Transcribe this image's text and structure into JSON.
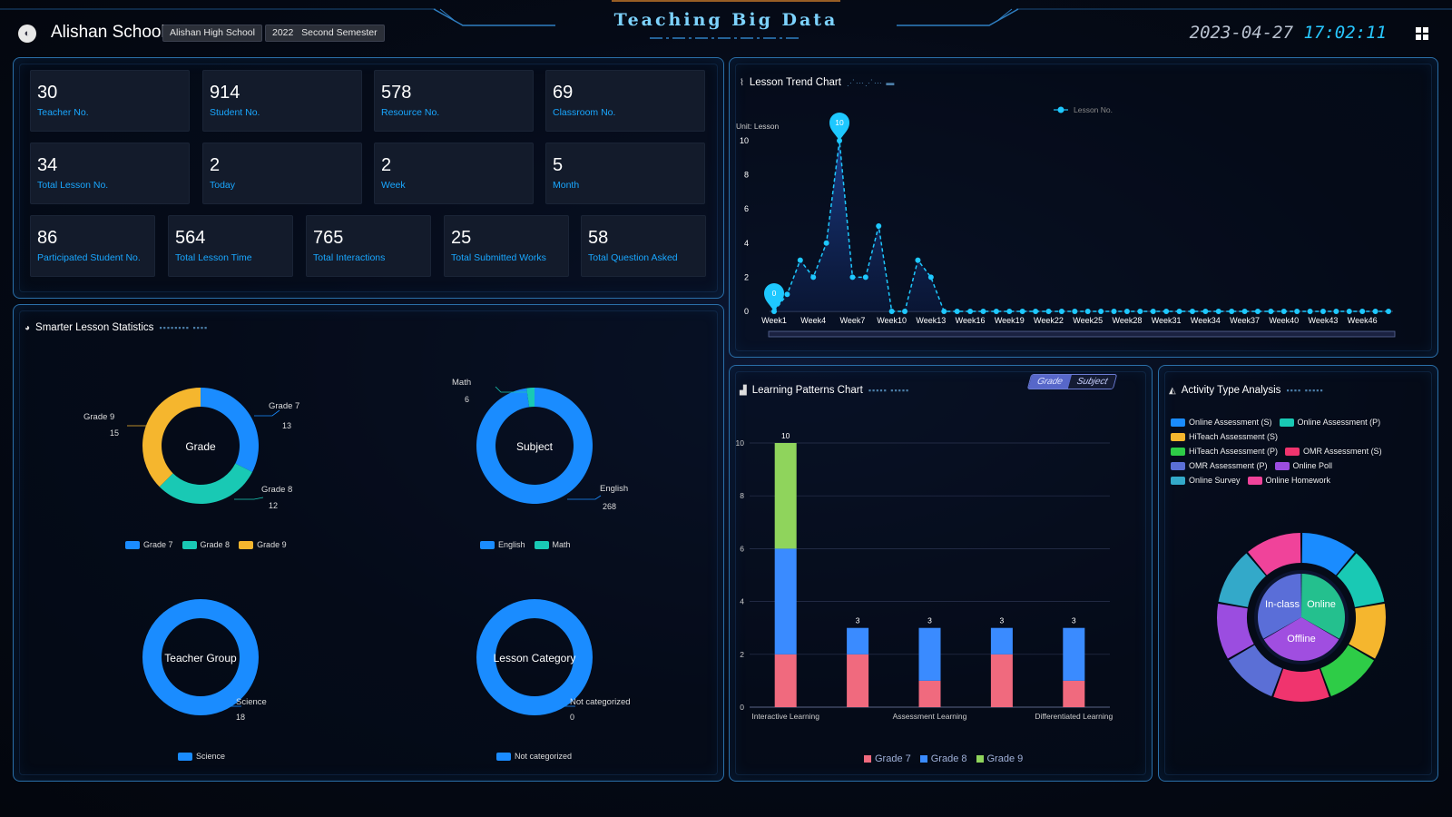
{
  "header": {
    "school_name": "Alishan School",
    "school_chip": "Alishan High School",
    "semester_chip": "2022   Second Semester",
    "title": "Teaching Big Data",
    "date": "2023-04-27",
    "time": "17:02:11"
  },
  "stats": {
    "teacher": {
      "value": "30",
      "label": "Teacher No."
    },
    "student": {
      "value": "914",
      "label": "Student No."
    },
    "resource": {
      "value": "578",
      "label": "Resource No."
    },
    "classroom": {
      "value": "69",
      "label": "Classroom No."
    },
    "total_lesson": {
      "value": "34",
      "label": "Total Lesson No."
    },
    "today": {
      "value": "2",
      "label": "Today"
    },
    "week": {
      "value": "2",
      "label": "Week"
    },
    "month": {
      "value": "5",
      "label": "Month"
    },
    "participated": {
      "value": "86",
      "label": "Participated Student No."
    },
    "lesson_time": {
      "value": "564",
      "label": "Total Lesson Time"
    },
    "interactions": {
      "value": "765",
      "label": "Total Interactions"
    },
    "submitted": {
      "value": "25",
      "label": "Total Submitted Works"
    },
    "questions": {
      "value": "58",
      "label": "Total Question Asked"
    }
  },
  "smarter": {
    "title": "Smarter Lesson Statistics",
    "grade": {
      "center": "Grade",
      "legend": [
        "Grade 7",
        "Grade 8",
        "Grade 9"
      ],
      "labels": {
        "g7": "Grade 7",
        "g7v": "13",
        "g8": "Grade 8",
        "g8v": "12",
        "g9": "Grade 9",
        "g9v": "15"
      }
    },
    "subject": {
      "center": "Subject",
      "legend": [
        "English",
        "Math"
      ],
      "labels": {
        "math": "Math",
        "mathv": "6",
        "eng": "English",
        "engv": "268"
      }
    },
    "teacher_group": {
      "center": "Teacher Group",
      "legend": [
        "Science"
      ],
      "labels": {
        "sci": "Science",
        "sciv": "18"
      }
    },
    "lesson_category": {
      "center": "Lesson Category",
      "legend": [
        "Not categorized"
      ],
      "labels": {
        "nc": "Not categorized",
        "ncv": "0"
      }
    }
  },
  "trend": {
    "title": "Lesson Trend Chart",
    "unit": "Unit: Lesson",
    "legend": "Lesson No."
  },
  "patterns": {
    "title": "Learning Patterns Chart",
    "toggle": [
      "Grade",
      "Subject"
    ],
    "legend": [
      "Grade 7",
      "Grade 8",
      "Grade 9"
    ]
  },
  "activity": {
    "title": "Activity Type Analysis",
    "legend": [
      "Online Assessment (S)",
      "Online Assessment (P)",
      "HiTeach Assessment (S)",
      "HiTeach Assessment (P)",
      "OMR Assessment (S)",
      "OMR Assessment (P)",
      "Online Poll",
      "Online Survey",
      "Online Homework"
    ],
    "inner": [
      "In-class",
      "Online",
      "Offline"
    ]
  },
  "colors": {
    "blue": "#1a8cff",
    "teal": "#19c9b4",
    "amber": "#f5b62e",
    "pink": "#f06a7e",
    "green": "#8fd45c"
  },
  "chart_data": [
    {
      "type": "pie",
      "title": "Grade",
      "categories": [
        "Grade 7",
        "Grade 8",
        "Grade 9"
      ],
      "values": [
        13,
        12,
        15
      ]
    },
    {
      "type": "pie",
      "title": "Subject",
      "categories": [
        "English",
        "Math"
      ],
      "values": [
        268,
        6
      ]
    },
    {
      "type": "pie",
      "title": "Teacher Group",
      "categories": [
        "Science"
      ],
      "values": [
        18
      ]
    },
    {
      "type": "pie",
      "title": "Lesson Category",
      "categories": [
        "Not categorized"
      ],
      "values": [
        0
      ]
    },
    {
      "type": "line",
      "title": "Lesson Trend Chart",
      "ylabel": "Unit: Lesson",
      "ylim": [
        0,
        10
      ],
      "yticks": [
        0,
        2,
        4,
        6,
        8,
        10
      ],
      "x": [
        1,
        2,
        3,
        4,
        5,
        6,
        7,
        8,
        9,
        10,
        11,
        12,
        13,
        14,
        15,
        16,
        17,
        18,
        19,
        20,
        21,
        22,
        23,
        24,
        25,
        26,
        27,
        28,
        29,
        30,
        31,
        32,
        33,
        34,
        35,
        36,
        37,
        38,
        39,
        40,
        41,
        42,
        43,
        44,
        45,
        46,
        47,
        48
      ],
      "xticks": [
        "Week1",
        "Week4",
        "Week7",
        "Week10",
        "Week13",
        "Week16",
        "Week19",
        "Week22",
        "Week25",
        "Week28",
        "Week31",
        "Week34",
        "Week37",
        "Week40",
        "Week43",
        "Week46"
      ],
      "series": [
        {
          "name": "Lesson No.",
          "values": [
            0,
            1,
            3,
            2,
            4,
            10,
            2,
            2,
            5,
            0,
            0,
            3,
            2,
            0,
            0,
            0,
            0,
            0,
            0,
            0,
            0,
            0,
            0,
            0,
            0,
            0,
            0,
            0,
            0,
            0,
            0,
            0,
            0,
            0,
            0,
            0,
            0,
            0,
            0,
            0,
            0,
            0,
            0,
            0,
            0,
            0,
            0,
            0
          ]
        }
      ],
      "markers": {
        "max": 10,
        "min": 0
      }
    },
    {
      "type": "bar",
      "title": "Learning Patterns Chart",
      "categories": [
        "Interactive Learning",
        "",
        "Assessment Learning",
        "",
        "Differentiated Learning"
      ],
      "ylim": [
        0,
        10
      ],
      "yticks": [
        0,
        2,
        4,
        6,
        8,
        10
      ],
      "series": [
        {
          "name": "Grade 7",
          "values": [
            2,
            2,
            1,
            2,
            1
          ]
        },
        {
          "name": "Grade 8",
          "values": [
            4,
            1,
            2,
            1,
            2
          ]
        },
        {
          "name": "Grade 9",
          "values": [
            4,
            0,
            0,
            0,
            0
          ]
        }
      ],
      "totals": [
        10,
        3,
        3,
        3,
        3
      ]
    },
    {
      "type": "pie",
      "title": "Activity Type Analysis",
      "categories": [
        "Online Assessment (S)",
        "Online Assessment (P)",
        "HiTeach Assessment (S)",
        "HiTeach Assessment (P)",
        "OMR Assessment (S)",
        "OMR Assessment (P)",
        "Online Poll",
        "Online Survey",
        "Online Homework"
      ],
      "values": [
        1,
        1,
        1,
        1,
        1,
        1,
        1,
        1,
        1
      ],
      "inner": {
        "categories": [
          "In-class",
          "Online",
          "Offline"
        ],
        "values": [
          1,
          1,
          1
        ]
      }
    }
  ]
}
